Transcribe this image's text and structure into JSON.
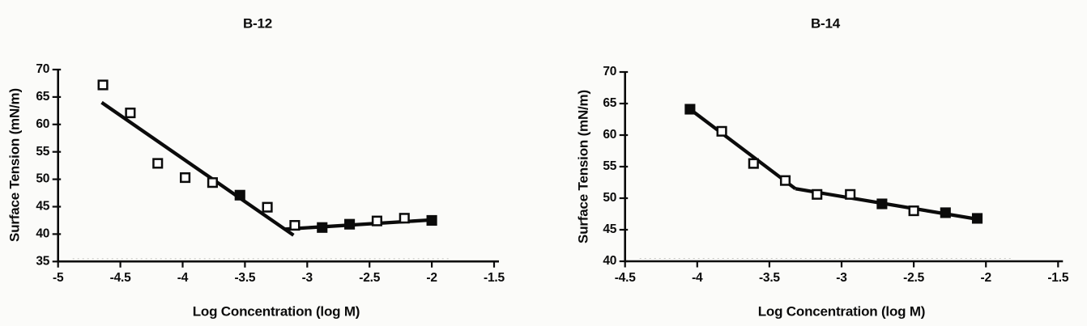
{
  "figure": {
    "background_color": "#fbfbf9",
    "ink_color": "#0b0b0b",
    "description_panels": [
      "B-12",
      "B-14"
    ]
  },
  "chart_data": [
    {
      "type": "scatter",
      "title": "B-12",
      "xlabel": "Log Concentration (log M)",
      "ylabel": "Surface Tension (mN/m)",
      "xlim": [
        -5,
        -1.5
      ],
      "ylim": [
        35,
        70
      ],
      "grid": false,
      "legend": null,
      "x_tick_values": [
        -5,
        -4.5,
        -4,
        -3.5,
        -3,
        -2.5,
        -2,
        -1.5
      ],
      "x_tick_labels": [
        "-5",
        "-4.5",
        "-4",
        "-3.5",
        "-3",
        "-2.5",
        "-2",
        "-1.5"
      ],
      "y_tick_values": [
        70,
        65,
        60,
        55,
        50,
        45,
        40,
        35
      ],
      "y_tick_labels": [
        "70",
        "65",
        "60",
        "55",
        "50",
        "45",
        "40",
        "35"
      ],
      "points": [
        {
          "x": -4.64,
          "y": 67.2,
          "marker": "open-square"
        },
        {
          "x": -4.42,
          "y": 62.1,
          "marker": "open-square"
        },
        {
          "x": -4.2,
          "y": 52.9,
          "marker": "open-square"
        },
        {
          "x": -3.98,
          "y": 50.3,
          "marker": "open-square"
        },
        {
          "x": -3.76,
          "y": 49.4,
          "marker": "open-square"
        },
        {
          "x": -3.54,
          "y": 47.1,
          "marker": "filled-square"
        },
        {
          "x": -3.32,
          "y": 44.9,
          "marker": "open-square"
        },
        {
          "x": -3.1,
          "y": 41.6,
          "marker": "open-square"
        },
        {
          "x": -2.88,
          "y": 41.2,
          "marker": "filled-square"
        },
        {
          "x": -2.66,
          "y": 41.8,
          "marker": "filled-square"
        },
        {
          "x": -2.44,
          "y": 42.4,
          "marker": "open-square"
        },
        {
          "x": -2.22,
          "y": 42.9,
          "marker": "open-square"
        },
        {
          "x": -2.0,
          "y": 42.5,
          "marker": "filled-square"
        }
      ],
      "fit_lines": [
        {
          "x1": -4.65,
          "y1": 64.0,
          "x2": -3.11,
          "y2": 39.8
        },
        {
          "x1": -3.18,
          "y1": 40.9,
          "x2": -1.99,
          "y2": 42.6
        }
      ]
    },
    {
      "type": "scatter",
      "title": "B-14",
      "xlabel": "Log Concentration (log M)",
      "ylabel": "Surface Tension (mN/m)",
      "xlim": [
        -4.5,
        -1.5
      ],
      "ylim": [
        40,
        70
      ],
      "grid": false,
      "legend": null,
      "x_tick_values": [
        -4.5,
        -4,
        -3.5,
        -3,
        -2.5,
        -2,
        -1.5
      ],
      "x_tick_labels": [
        "-4.5",
        "-4",
        "-3.5",
        "-3",
        "-2.5",
        "-2",
        "-1.5"
      ],
      "y_tick_values": [
        70,
        65,
        60,
        55,
        50,
        45,
        40
      ],
      "y_tick_labels": [
        "70",
        "65",
        "60",
        "55",
        "50",
        "45",
        "40"
      ],
      "points": [
        {
          "x": -4.05,
          "y": 64.1,
          "marker": "filled-square"
        },
        {
          "x": -3.83,
          "y": 60.6,
          "marker": "open-square"
        },
        {
          "x": -3.61,
          "y": 55.5,
          "marker": "open-square"
        },
        {
          "x": -3.39,
          "y": 52.8,
          "marker": "open-square"
        },
        {
          "x": -3.17,
          "y": 50.6,
          "marker": "open-square"
        },
        {
          "x": -2.94,
          "y": 50.6,
          "marker": "open-square"
        },
        {
          "x": -2.72,
          "y": 49.1,
          "marker": "filled-square"
        },
        {
          "x": -2.5,
          "y": 48.0,
          "marker": "open-square"
        },
        {
          "x": -2.28,
          "y": 47.7,
          "marker": "filled-square"
        },
        {
          "x": -2.06,
          "y": 46.8,
          "marker": "filled-square"
        }
      ],
      "fit_lines": [
        {
          "x1": -4.05,
          "y1": 64.1,
          "x2": -3.32,
          "y2": 51.5
        },
        {
          "x1": -3.32,
          "y1": 51.5,
          "x2": -2.04,
          "y2": 46.6
        }
      ]
    }
  ]
}
